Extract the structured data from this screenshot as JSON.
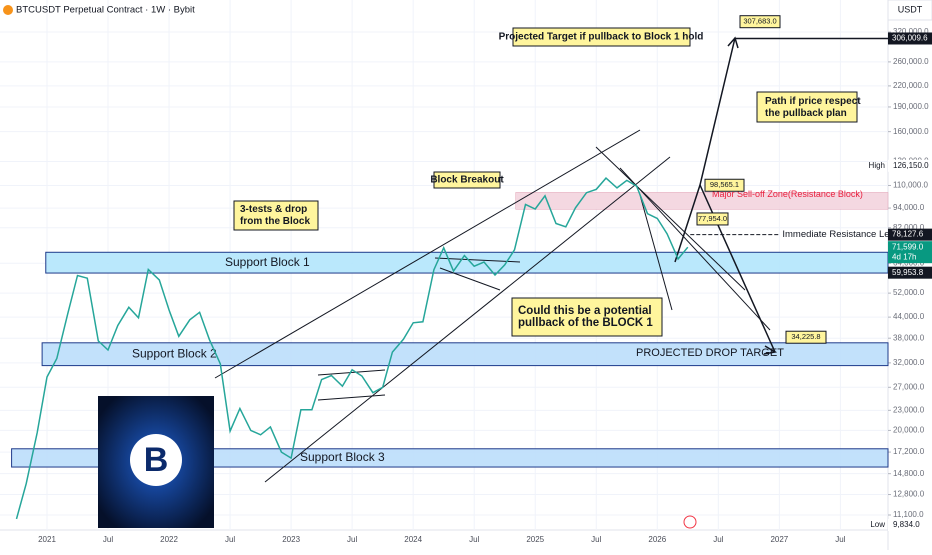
{
  "chart_data": {
    "type": "line",
    "title": "BTCUSDT Perpetual Contract · 1W · Bybit",
    "currency": "USDT",
    "log_scale": true,
    "grid": true,
    "color": "#26a69a",
    "x": [
      2020.75,
      2020.83,
      2020.92,
      2021.0,
      2021.08,
      2021.17,
      2021.25,
      2021.33,
      2021.42,
      2021.5,
      2021.58,
      2021.67,
      2021.75,
      2021.83,
      2021.92,
      2022.0,
      2022.08,
      2022.17,
      2022.25,
      2022.33,
      2022.42,
      2022.5,
      2022.58,
      2022.67,
      2022.75,
      2022.83,
      2022.92,
      2023.0,
      2023.08,
      2023.17,
      2023.25,
      2023.33,
      2023.42,
      2023.5,
      2023.58,
      2023.67,
      2023.75,
      2023.83,
      2023.92,
      2024.0,
      2024.08,
      2024.17,
      2024.25,
      2024.33,
      2024.42,
      2024.5,
      2024.58,
      2024.67,
      2024.75,
      2024.83,
      2024.92,
      2025.0,
      2025.08,
      2025.17,
      2025.25,
      2025.33,
      2025.42,
      2025.5,
      2025.58,
      2025.67,
      2025.75,
      2025.83,
      2025.92,
      2026.0,
      2026.08,
      2026.17,
      2026.25
    ],
    "values": [
      10800,
      13800,
      19700,
      29000,
      33000,
      45000,
      58800,
      57700,
      37300,
      35000,
      41500,
      47100,
      43800,
      61300,
      57000,
      46200,
      38500,
      43200,
      45500,
      37700,
      31800,
      19900,
      23300,
      20000,
      19400,
      20500,
      17200,
      16500,
      23100,
      23100,
      28500,
      29300,
      27200,
      30500,
      29200,
      26000,
      27000,
      34500,
      37700,
      42300,
      42600,
      61200,
      71300,
      60600,
      67500,
      62700,
      64600,
      59000,
      63300,
      70300,
      96400,
      93400,
      102400,
      84400,
      82500,
      94200,
      104600,
      107100,
      115800,
      108200,
      114000,
      109500,
      90400,
      87500,
      78600,
      66000,
      71599
    ],
    "xlim": [
      2020.615,
      2027.89
    ],
    "xticks": [
      {
        "value": 2021,
        "label": "2021"
      },
      {
        "value": 2021.5,
        "label": "Jul"
      },
      {
        "value": 2022,
        "label": "2022"
      },
      {
        "value": 2022.5,
        "label": "Jul"
      },
      {
        "value": 2023,
        "label": "2023"
      },
      {
        "value": 2023.5,
        "label": "Jul"
      },
      {
        "value": 2024,
        "label": "2024"
      },
      {
        "value": 2024.5,
        "label": "Jul"
      },
      {
        "value": 2025,
        "label": "2025"
      },
      {
        "value": 2025.5,
        "label": "Jul"
      },
      {
        "value": 2026,
        "label": "2026"
      },
      {
        "value": 2026.5,
        "label": "Jul"
      },
      {
        "value": 2027,
        "label": "2027"
      },
      {
        "value": 2027.5,
        "label": "Jul"
      }
    ],
    "ylim": [
      10000,
      400000
    ],
    "yticks": [
      {
        "value": 320000,
        "label": "320,000.0"
      },
      {
        "value": 260000,
        "label": "260,000.0"
      },
      {
        "value": 220000,
        "label": "220,000.0"
      },
      {
        "value": 190000,
        "label": "190,000.0"
      },
      {
        "value": 160000,
        "label": "160,000.0"
      },
      {
        "value": 130000,
        "label": "130,000.0"
      },
      {
        "value": 110000,
        "label": "110,000.0"
      },
      {
        "value": 94000,
        "label": "94,000.0"
      },
      {
        "value": 82000,
        "label": "82,000.0"
      },
      {
        "value": 64000,
        "label": "64,000.0"
      },
      {
        "value": 52000,
        "label": "52,000.0"
      },
      {
        "value": 44000,
        "label": "44,000.0"
      },
      {
        "value": 38000,
        "label": "38,000.0"
      },
      {
        "value": 32000,
        "label": "32,000.0"
      },
      {
        "value": 27000,
        "label": "27,000.0"
      },
      {
        "value": 23000,
        "label": "23,000.0"
      },
      {
        "value": 20000,
        "label": "20,000.0"
      },
      {
        "value": 17200,
        "label": "17,200.0"
      },
      {
        "value": 14800,
        "label": "14,800.0"
      },
      {
        "value": 12800,
        "label": "12,800.0"
      },
      {
        "value": 11100,
        "label": "11,100.0"
      }
    ],
    "price_tags": [
      {
        "value": 306009.6,
        "label": "306,009.6"
      },
      {
        "value": 78127.6,
        "label": "78,127.6"
      },
      {
        "value": 71599,
        "label": "71,599.0",
        "countdown": "4d 17h"
      },
      {
        "value": 59953.8,
        "label": "59,953.8"
      }
    ],
    "current_color": "#089981",
    "high": {
      "text": "High",
      "value": 126150,
      "label": "126,150.0"
    },
    "low": {
      "text": "Low",
      "value": 9834,
      "label": "9,834.0"
    },
    "zones": [
      {
        "label": "Support Block 1",
        "lo": 59800,
        "hi": 69100,
        "x0": 2020.99,
        "color": "#b3e5fc"
      },
      {
        "label": "Support Block 2",
        "lo": 31400,
        "hi": 36800,
        "x0": 2020.96,
        "color": "#bbdefb"
      },
      {
        "label": "Support Block 3",
        "lo": 15500,
        "hi": 17600,
        "x0": 2020.71,
        "color": "#bbdefb"
      },
      {
        "label": "Major Sell-off Zone(Resistance Block)",
        "lo": 93200,
        "hi": 104800,
        "x0": 2024.84,
        "color": "#f3d4de"
      }
    ],
    "resistance_line": {
      "label": "Immediate Resistance Level",
      "x0": 2026.27,
      "x1": 2027.0
    },
    "drop_target": {
      "label": "PROJECTED DROP TARGET"
    },
    "targets": [
      {
        "value": 307683,
        "label": "307,683.0"
      },
      {
        "value": 98565.1,
        "label": "98,565.1"
      },
      {
        "value": 77954,
        "label": "77,954.0"
      },
      {
        "value": 34225.8,
        "label": "34,225.8"
      }
    ],
    "callouts": [
      "Projected Target if pullback to Block 1 hold",
      "Path if price respect the pullback plan",
      "Block Breakout",
      "3-tests & drop from the Block",
      "Could this be a potential pullback of the BLOCK 1"
    ]
  }
}
